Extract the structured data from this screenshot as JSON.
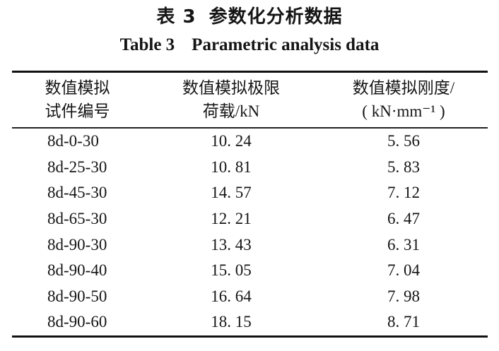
{
  "caption": {
    "zh_label": "表 3",
    "zh_title": "参数化分析数据",
    "en_label": "Table 3",
    "en_title": "Parametric analysis data"
  },
  "table": {
    "headers": [
      {
        "line1": "数值模拟",
        "line2": "试件编号"
      },
      {
        "line1": "数值模拟极限",
        "line2": "荷载/kN"
      },
      {
        "line1": "数值模拟刚度/",
        "line2": "( kN·mm⁻¹ )"
      }
    ],
    "rows": [
      [
        "8d-0-30",
        "10. 24",
        "5. 56"
      ],
      [
        "8d-25-30",
        "10. 81",
        "5. 83"
      ],
      [
        "8d-45-30",
        "14. 57",
        "7. 12"
      ],
      [
        "8d-65-30",
        "12. 21",
        "6. 47"
      ],
      [
        "8d-90-30",
        "13. 43",
        "6. 31"
      ],
      [
        "8d-90-40",
        "15. 05",
        "7. 04"
      ],
      [
        "8d-90-50",
        "16. 64",
        "7. 98"
      ],
      [
        "8d-90-60",
        "18. 15",
        "8. 71"
      ]
    ]
  }
}
